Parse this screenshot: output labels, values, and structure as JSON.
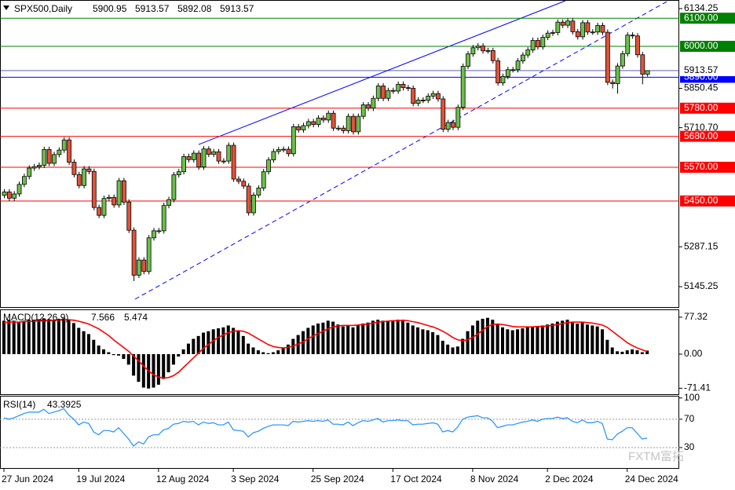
{
  "chart_data": [
    {
      "type": "candlestick",
      "title": "SPX500,Daily",
      "categories": [
        "27 Jun 2024",
        null,
        null,
        null,
        null,
        null,
        null,
        null,
        null,
        null,
        null,
        null,
        null,
        null,
        null,
        "19 Jul 2024",
        null,
        null,
        null,
        null,
        null,
        null,
        null,
        null,
        null,
        null,
        null,
        null,
        null,
        null,
        null,
        "12 Aug 2024",
        null,
        null,
        null,
        null,
        null,
        null,
        null,
        null,
        null,
        null,
        null,
        null,
        null,
        null,
        "3 Sep 2024",
        null,
        null,
        null,
        null,
        null,
        null,
        null,
        null,
        null,
        null,
        null,
        null,
        null,
        null,
        null,
        "25 Sep 2024",
        null,
        null,
        null,
        null,
        null,
        null,
        null,
        null,
        null,
        null,
        null,
        null,
        null,
        null,
        null,
        "17 Oct 2024",
        null,
        null,
        null,
        null,
        null,
        null,
        null,
        null,
        null,
        null,
        null,
        null,
        null,
        null,
        null,
        "8 Nov 2024",
        null,
        null,
        null,
        null,
        null,
        null,
        null,
        null,
        null,
        null,
        null,
        null,
        null,
        null,
        "2 Dec 2024",
        null,
        null,
        null,
        null,
        null,
        null,
        null,
        null,
        null,
        null,
        null,
        null,
        null,
        null,
        null,
        "24 Dec 2024",
        null,
        null,
        null,
        null
      ],
      "open": [
        5470,
        5482,
        5460,
        5475,
        5509,
        5537,
        5567,
        5572,
        5577,
        5633,
        5584,
        5615,
        5631,
        5667,
        5588,
        5544,
        5505,
        5564,
        5555,
        5427,
        5399,
        5459,
        5463,
        5436,
        5522,
        5446,
        5346,
        5186,
        5240,
        5199,
        5319,
        5344,
        5344,
        5434,
        5455,
        5543,
        5554,
        5608,
        5597,
        5620,
        5571,
        5635,
        5616,
        5625,
        5592,
        5592,
        5648,
        5528,
        5520,
        5503,
        5408,
        5471,
        5496,
        5554,
        5596,
        5626,
        5633,
        5634,
        5618,
        5714,
        5703,
        5718,
        5732,
        5722,
        5745,
        5738,
        5762,
        5709,
        5709,
        5700,
        5751,
        5696,
        5751,
        5792,
        5780,
        5815,
        5859,
        5815,
        5843,
        5841,
        5865,
        5853,
        5851,
        5797,
        5809,
        5808,
        5823,
        5832,
        5813,
        5705,
        5729,
        5712,
        5783,
        5929,
        5973,
        5995,
        6001,
        5984,
        5985,
        5949,
        5870,
        5893,
        5917,
        5917,
        5948,
        5969,
        5987,
        6021,
        5998,
        6032,
        6047,
        6049,
        6086,
        6075,
        6090,
        6052,
        6034,
        6084,
        6051,
        6051,
        6074,
        6050,
        5872,
        5867,
        5930,
        5974,
        6040,
        6037,
        5970,
        5900.95
      ],
      "high": [
        5492,
        5492,
        5485,
        5519,
        5547,
        5577,
        5582,
        5587,
        5643,
        5643,
        5625,
        5641,
        5677,
        5677,
        5598,
        5554,
        5574,
        5574,
        5565,
        5437,
        5469,
        5473,
        5473,
        5532,
        5532,
        5456,
        5356,
        5250,
        5250,
        5329,
        5354,
        5354,
        5444,
        5465,
        5553,
        5564,
        5618,
        5618,
        5630,
        5630,
        5645,
        5645,
        5635,
        5635,
        5602,
        5658,
        5658,
        5538,
        5530,
        5513,
        5481,
        5506,
        5564,
        5606,
        5636,
        5643,
        5644,
        5644,
        5724,
        5724,
        5728,
        5742,
        5742,
        5755,
        5755,
        5772,
        5772,
        5719,
        5719,
        5761,
        5761,
        5761,
        5802,
        5802,
        5825,
        5869,
        5869,
        5853,
        5853,
        5875,
        5875,
        5863,
        5861,
        5819,
        5819,
        5833,
        5842,
        5842,
        5823,
        5739,
        5739,
        5793,
        5939,
        5983,
        6005,
        6011,
        6011,
        5995,
        5995,
        5959,
        5903,
        5927,
        5927,
        5958,
        5979,
        5997,
        6031,
        6031,
        6042,
        6057,
        6059,
        6096,
        6096,
        6100,
        6100,
        6062,
        6094,
        6094,
        6061,
        6084,
        6084,
        6060,
        5882,
        5940,
        5984,
        6050,
        6050,
        6047,
        5980,
        5913.57
      ],
      "low": [
        5460,
        5450,
        5450,
        5465,
        5499,
        5527,
        5557,
        5562,
        5567,
        5574,
        5574,
        5605,
        5621,
        5578,
        5534,
        5495,
        5495,
        5545,
        5417,
        5389,
        5389,
        5449,
        5426,
        5426,
        5436,
        5336,
        5165,
        5176,
        5189,
        5189,
        5309,
        5334,
        5334,
        5424,
        5445,
        5533,
        5544,
        5587,
        5587,
        5561,
        5561,
        5606,
        5606,
        5582,
        5582,
        5582,
        5518,
        5510,
        5493,
        5398,
        5398,
        5461,
        5486,
        5544,
        5586,
        5616,
        5623,
        5608,
        5608,
        5693,
        5693,
        5708,
        5712,
        5712,
        5728,
        5728,
        5699,
        5699,
        5690,
        5690,
        5686,
        5686,
        5741,
        5770,
        5770,
        5805,
        5805,
        5805,
        5831,
        5831,
        5843,
        5841,
        5787,
        5787,
        5798,
        5798,
        5813,
        5803,
        5695,
        5695,
        5702,
        5702,
        5773,
        5919,
        5963,
        5985,
        5974,
        5974,
        5939,
        5860,
        5860,
        5883,
        5907,
        5907,
        5938,
        5959,
        5977,
        5988,
        5988,
        6022,
        6037,
        6039,
        6065,
        6065,
        6042,
        6024,
        6024,
        6041,
        6041,
        6041,
        6040,
        5862,
        5850,
        5832,
        5920,
        5964,
        6027,
        5960,
        5865,
        5892.08
      ],
      "close": [
        5482,
        5460,
        5475,
        5509,
        5537,
        5567,
        5572,
        5577,
        5633,
        5584,
        5615,
        5631,
        5667,
        5588,
        5544,
        5505,
        5564,
        5555,
        5427,
        5399,
        5459,
        5463,
        5436,
        5522,
        5446,
        5346,
        5186,
        5240,
        5199,
        5319,
        5344,
        5344,
        5434,
        5455,
        5543,
        5554,
        5608,
        5597,
        5620,
        5571,
        5635,
        5616,
        5625,
        5592,
        5592,
        5648,
        5528,
        5520,
        5503,
        5408,
        5471,
        5496,
        5554,
        5596,
        5626,
        5633,
        5634,
        5618,
        5714,
        5703,
        5718,
        5732,
        5722,
        5745,
        5738,
        5762,
        5709,
        5709,
        5700,
        5751,
        5696,
        5751,
        5792,
        5780,
        5815,
        5859,
        5815,
        5843,
        5841,
        5865,
        5853,
        5851,
        5797,
        5809,
        5808,
        5823,
        5832,
        5813,
        5705,
        5729,
        5712,
        5783,
        5929,
        5973,
        5995,
        6001,
        5984,
        5985,
        5949,
        5870,
        5893,
        5917,
        5917,
        5948,
        5969,
        5987,
        6021,
        5998,
        6032,
        6047,
        6049,
        6086,
        6075,
        6090,
        6052,
        6034,
        6084,
        6051,
        6051,
        6074,
        6050,
        5872,
        5867,
        5930,
        5974,
        6040,
        6037,
        5970,
        5901,
        5913.57
      ],
      "up_color": "#6cc04a",
      "down_color": "#e0533a",
      "ylim": [
        5070,
        6162
      ],
      "yticks": [
        6134.25,
        5850.45,
        {
          "value": 5710.7,
          "label": "5710.70"
        },
        5287.15,
        5145.25
      ],
      "levels": [
        {
          "value": 6100,
          "label": "6100.00",
          "color": "#008000"
        },
        {
          "value": 6000,
          "label": "6000.00",
          "color": "#008000"
        },
        {
          "value": 5890,
          "label": "5890.00",
          "color": "#0000ff"
        },
        {
          "value": 5780,
          "label": "5780.00",
          "color": "#ff0000"
        },
        {
          "value": 5680,
          "label": "5680.00",
          "color": "#ff0000"
        },
        {
          "value": 5570,
          "label": "5570.00",
          "color": "#ff0000"
        },
        {
          "value": 5450,
          "label": "5450.00",
          "color": "#ff0000"
        }
      ]
    },
    {
      "type": "macd",
      "title": "MACD(12,26,9)",
      "series": [
        {
          "color": "#000000",
          "values": [
            70,
            72,
            70,
            68,
            70,
            72,
            72,
            73,
            75,
            73,
            72,
            74,
            75,
            72,
            65,
            55,
            48,
            42,
            30,
            18,
            10,
            4,
            -2,
            -3,
            -10,
            -22,
            -45,
            -58,
            -70,
            -72,
            -70,
            -64,
            -52,
            -38,
            -22,
            -5,
            10,
            22,
            32,
            38,
            45,
            48,
            52,
            54,
            56,
            60,
            55,
            48,
            38,
            22,
            14,
            8,
            4,
            2,
            4,
            8,
            14,
            20,
            32,
            40,
            48,
            55,
            60,
            64,
            66,
            70,
            68,
            62,
            58,
            60,
            56,
            60,
            64,
            66,
            70,
            72,
            70,
            70,
            70,
            72,
            70,
            66,
            60,
            56,
            52,
            50,
            46,
            40,
            28,
            20,
            14,
            16,
            32,
            48,
            60,
            70,
            74,
            76,
            72,
            62,
            56,
            52,
            50,
            52,
            54,
            56,
            58,
            58,
            60,
            62,
            64,
            68,
            70,
            72,
            68,
            64,
            66,
            62,
            60,
            58,
            52,
            30,
            14,
            6,
            5,
            8,
            10,
            8,
            4,
            7.566
          ]
        },
        {
          "color": "#ff0000",
          "values": [
            66,
            67,
            67,
            67,
            68,
            68,
            69,
            69,
            70,
            70,
            71,
            71,
            72,
            72,
            71,
            69,
            66,
            63,
            58,
            53,
            46,
            39,
            30,
            22,
            14,
            6,
            -4,
            -14,
            -25,
            -35,
            -43,
            -48,
            -50,
            -49,
            -45,
            -38,
            -28,
            -18,
            -8,
            2,
            12,
            20,
            28,
            35,
            40,
            45,
            48,
            49,
            48,
            44,
            38,
            32,
            26,
            20,
            16,
            14,
            13,
            14,
            17,
            21,
            26,
            32,
            38,
            43,
            48,
            53,
            57,
            59,
            60,
            60,
            60,
            61,
            62,
            63,
            65,
            67,
            68,
            69,
            70,
            70,
            71,
            70,
            68,
            66,
            63,
            60,
            57,
            53,
            48,
            42,
            35,
            30,
            28,
            30,
            35,
            42,
            50,
            58,
            62,
            63,
            62,
            60,
            58,
            57,
            57,
            57,
            57,
            58,
            58,
            59,
            60,
            62,
            64,
            66,
            67,
            67,
            67,
            66,
            65,
            63,
            61,
            56,
            48,
            40,
            32,
            24,
            18,
            13,
            9,
            5.474
          ]
        }
      ],
      "ylim": [
        -85.5,
        92
      ],
      "yticks": [
        77.32,
        {
          "value": 0,
          "label": "0.00"
        },
        -71.41
      ]
    },
    {
      "type": "line",
      "title": "RSI(14)",
      "series": [
        {
          "color": "#1e90ff",
          "values": [
            72,
            70,
            72,
            75,
            78,
            80,
            80,
            80,
            84,
            78,
            80,
            82,
            85,
            76,
            70,
            62,
            66,
            64,
            52,
            48,
            54,
            54,
            52,
            58,
            50,
            42,
            32,
            38,
            35,
            45,
            48,
            48,
            55,
            57,
            63,
            64,
            67,
            66,
            67,
            62,
            66,
            64,
            65,
            62,
            62,
            66,
            55,
            54,
            53,
            45,
            51,
            53,
            57,
            60,
            62,
            62,
            62,
            61,
            67,
            66,
            67,
            68,
            67,
            68,
            67,
            69,
            63,
            63,
            62,
            66,
            61,
            65,
            68,
            67,
            69,
            71,
            66,
            68,
            68,
            69,
            68,
            68,
            62,
            63,
            63,
            64,
            65,
            63,
            52,
            54,
            52,
            59,
            70,
            73,
            74,
            75,
            72,
            72,
            67,
            58,
            60,
            62,
            62,
            64,
            66,
            67,
            69,
            67,
            70,
            71,
            71,
            73,
            71,
            72,
            67,
            65,
            69,
            65,
            65,
            67,
            64,
            42,
            41,
            49,
            53,
            58,
            58,
            50,
            42,
            43.3925
          ]
        }
      ],
      "ylim": [
        0,
        102
      ],
      "yticks": [
        100,
        70,
        30
      ],
      "levels": [
        70,
        30
      ]
    }
  ],
  "watermark": "FXTM富拓"
}
